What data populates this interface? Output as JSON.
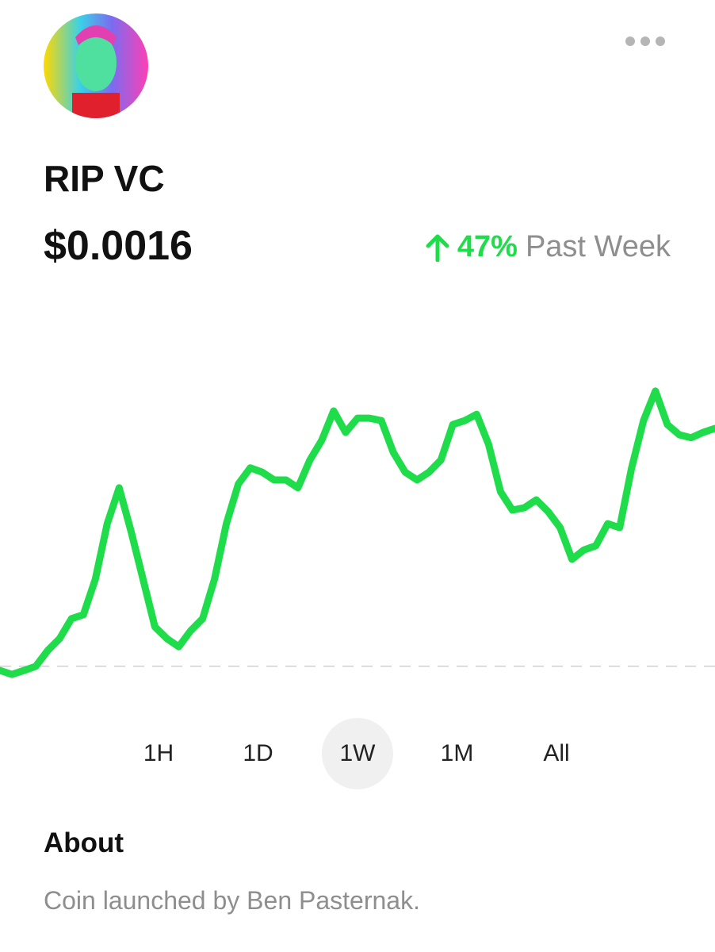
{
  "header": {
    "title": "RIP VC",
    "price": "$0.0016",
    "change": "47%",
    "change_period": "Past Week"
  },
  "chart_data": {
    "type": "line",
    "color": "#1fdc4a",
    "ylim": [
      0,
      100
    ],
    "reference_line": 5.3,
    "values": [
      3.9,
      2.6,
      3.9,
      5.3,
      10.5,
      14.5,
      21.1,
      22.4,
      34.2,
      52.6,
      64.5,
      50,
      34.2,
      18.4,
      14.5,
      11.8,
      17.1,
      21.1,
      34.2,
      52.6,
      65.8,
      71.1,
      69.7,
      67.1,
      67.1,
      64.5,
      73.7,
      80.3,
      90,
      82.9,
      87.6,
      87.6,
      86.8,
      76.3,
      69.7,
      67.1,
      69.7,
      73.7,
      85.5,
      86.8,
      88.9,
      78.9,
      63.2,
      57.1,
      57.9,
      60.5,
      56.6,
      51.3,
      40.8,
      43.9,
      45.3,
      52.6,
      51.3,
      71.1,
      86.8,
      96.6,
      85.5,
      82.1,
      81.1,
      82.9,
      84.2
    ]
  },
  "ranges": {
    "options": [
      "1H",
      "1D",
      "1W",
      "1M",
      "All"
    ],
    "selected": "1W"
  },
  "about": {
    "heading": "About",
    "text": "Coin launched by Ben Pasternak."
  }
}
